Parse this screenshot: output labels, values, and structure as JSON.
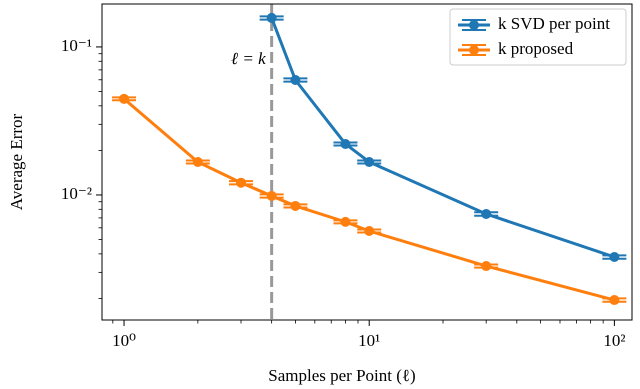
{
  "chart_data": {
    "type": "line",
    "x_label": "Samples per Point (ℓ)",
    "y_label": "Average Error",
    "xscale": "log",
    "yscale": "log",
    "xlim": [
      0.813,
      118
    ],
    "ylim": [
      0.00143,
      0.195
    ],
    "xticks": [
      {
        "value": 1,
        "label": "10⁰"
      },
      {
        "value": 10,
        "label": "10¹"
      },
      {
        "value": 100,
        "label": "10²"
      }
    ],
    "yticks": [
      {
        "value": 0.01,
        "label": "10⁻²"
      },
      {
        "value": 0.1,
        "label": "10⁻¹"
      }
    ],
    "legend": "upper right",
    "vline": 4,
    "vline_color": "#999999",
    "vline_label": "ℓ = k",
    "series": [
      {
        "name": "k SVD per point",
        "color": "#1f77b4",
        "x": [
          4,
          5,
          8,
          10,
          30,
          100
        ],
        "values": [
          0.157,
          0.0598,
          0.0221,
          0.0167,
          0.00744,
          0.00381
        ],
        "errors": [
          0.004,
          0.0015,
          0.0005,
          0.0004,
          0.0002,
          0.0001
        ]
      },
      {
        "name": "k proposed",
        "color": "#ff7f0e",
        "x": [
          1,
          2,
          3,
          4,
          5,
          8,
          10,
          30,
          100
        ],
        "values": [
          0.0446,
          0.0167,
          0.0121,
          0.00985,
          0.00843,
          0.00658,
          0.00571,
          0.00331,
          0.00195
        ],
        "errors": [
          0.001,
          0.0004,
          0.0003,
          0.00025,
          0.0002,
          0.00015,
          0.00013,
          8e-05,
          5e-05
        ]
      }
    ]
  }
}
